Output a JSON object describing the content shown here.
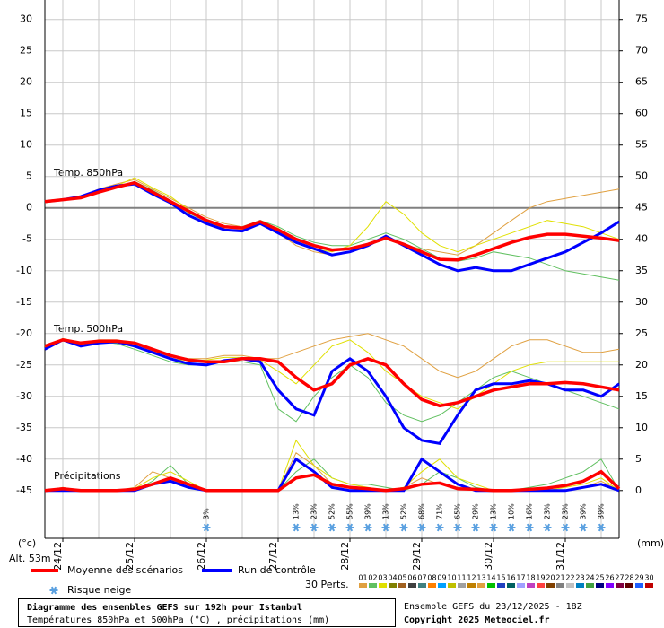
{
  "chart_data": {
    "type": "line",
    "xlim": [
      0,
      192
    ],
    "xticks": [
      {
        "value": 6,
        "label": "24/12"
      },
      {
        "value": 30,
        "label": "25/12"
      },
      {
        "value": 54,
        "label": "26/12"
      },
      {
        "value": 78,
        "label": "27/12"
      },
      {
        "value": 102,
        "label": "28/12"
      },
      {
        "value": 126,
        "label": "29/12"
      },
      {
        "value": 150,
        "label": "30/12"
      },
      {
        "value": 174,
        "label": "31/12"
      }
    ],
    "ylim": [
      -52.6,
      33.1
    ],
    "yticks": [
      -45,
      -40,
      -35,
      -30,
      -25,
      -20,
      -15,
      -10,
      -5,
      0,
      5,
      10,
      15,
      20,
      25,
      30
    ],
    "y2lim": [
      -7.6,
      78.1
    ],
    "y2ticks": [
      0,
      5,
      10,
      15,
      20,
      25,
      30,
      35,
      40,
      45,
      50,
      55,
      60,
      65,
      70,
      75
    ],
    "grid": true,
    "y_unit": "(°c)",
    "y2_unit": "(mm)",
    "altitude": "Alt. 53m",
    "x": [
      0,
      6,
      12,
      18,
      24,
      30,
      36,
      42,
      48,
      54,
      60,
      66,
      72,
      78,
      84,
      90,
      96,
      102,
      108,
      114,
      120,
      126,
      132,
      138,
      144,
      150,
      156,
      162,
      168,
      174,
      180,
      186,
      192
    ],
    "series": [
      {
        "name": "Temp. 850hPa",
        "axis": "y",
        "mean": [
          1.0,
          1.3,
          1.6,
          2.5,
          3.3,
          4.0,
          2.5,
          1.0,
          -0.5,
          -2,
          -3,
          -3.2,
          -2.2,
          -3.5,
          -5,
          -6,
          -6.7,
          -6.5,
          -5.8,
          -4.8,
          -5.8,
          -7,
          -8.2,
          -8.3,
          -7.5,
          -6.5,
          -5.5,
          -4.7,
          -4.2,
          -4.2,
          -4.5,
          -4.8,
          -5.2
        ],
        "control": [
          1,
          1.3,
          1.8,
          2.8,
          3.5,
          3.8,
          2.2,
          0.8,
          -1.2,
          -2.5,
          -3.5,
          -3.7,
          -2.5,
          -4,
          -5.5,
          -6.5,
          -7.5,
          -7,
          -6,
          -4.5,
          -6,
          -7.5,
          -9,
          -10,
          -9.5,
          -10,
          -10,
          -9,
          -8,
          -7,
          -5.5,
          -4,
          -2.2
        ],
        "members": [
          [
            1,
            1.2,
            1.8,
            3,
            3.8,
            4.5,
            3,
            1.5,
            0,
            -1.5,
            -2.5,
            -3,
            -2,
            -4,
            -6,
            -7,
            -7.5,
            -7,
            -6,
            -5,
            -6,
            -6.5,
            -7,
            -7.5,
            -6,
            -4,
            -2,
            0,
            1,
            1.5,
            2,
            2.5,
            3
          ],
          [
            0.8,
            1.4,
            1.5,
            2.6,
            3.2,
            4.2,
            2.8,
            1.2,
            -0.8,
            -2.2,
            -3.2,
            -3,
            -2,
            -3,
            -4.5,
            -5.5,
            -6,
            -6,
            -5,
            -4,
            -5,
            -6.5,
            -8,
            -8.5,
            -8,
            -7,
            -7.5,
            -8,
            -9,
            -10,
            -10.5,
            -11,
            -11.5
          ],
          [
            1.1,
            1.3,
            1.7,
            2.8,
            3.5,
            4.8,
            3.2,
            1.8,
            -0.3,
            -2,
            -3.5,
            -3.5,
            -2.5,
            -3.2,
            -5.5,
            -6.5,
            -7,
            -6,
            -3,
            1,
            -1,
            -4,
            -6,
            -7,
            -6,
            -5,
            -4,
            -3,
            -2,
            -2.5,
            -3,
            -4,
            -5
          ]
        ]
      },
      {
        "name": "Temp. 500hPa",
        "axis": "y",
        "mean": [
          -22,
          -21,
          -21.5,
          -21.2,
          -21.2,
          -21.5,
          -22.5,
          -23.5,
          -24.2,
          -24.5,
          -24.5,
          -24,
          -24,
          -24.5,
          -27,
          -29,
          -28,
          -25,
          -24,
          -25,
          -28,
          -30.5,
          -31.5,
          -31,
          -30,
          -29,
          -28.5,
          -28,
          -28,
          -27.8,
          -28,
          -28.5,
          -29
        ],
        "control": [
          -22.5,
          -21,
          -22,
          -21.5,
          -21.3,
          -22,
          -23,
          -24,
          -24.8,
          -25,
          -24.3,
          -24,
          -24.5,
          -29,
          -32,
          -33,
          -26,
          -24,
          -26,
          -30,
          -35,
          -37,
          -37.5,
          -33,
          -29,
          -28,
          -28,
          -27.5,
          -28,
          -29,
          -29,
          -30,
          -28
        ],
        "members": [
          [
            -22,
            -21.2,
            -21.8,
            -21,
            -21,
            -21.5,
            -22.5,
            -23.5,
            -24,
            -24,
            -23.5,
            -23.5,
            -24,
            -24,
            -23,
            -22,
            -21,
            -20.5,
            -20,
            -21,
            -22,
            -24,
            -26,
            -27,
            -26,
            -24,
            -22,
            -21,
            -21,
            -22,
            -23,
            -23,
            -22.5
          ],
          [
            -22.3,
            -21,
            -21.6,
            -21.3,
            -21.6,
            -22.5,
            -23.5,
            -24.5,
            -25,
            -25,
            -24.5,
            -24.5,
            -25,
            -32,
            -34,
            -30,
            -27,
            -25,
            -27,
            -31,
            -33,
            -34,
            -33,
            -31,
            -29,
            -27,
            -26,
            -27,
            -28,
            -29,
            -30,
            -31,
            -32
          ],
          [
            -22.1,
            -20.8,
            -21.4,
            -21.1,
            -21.2,
            -22,
            -23,
            -24,
            -24.3,
            -24.2,
            -23.8,
            -23.8,
            -24.2,
            -26,
            -28,
            -25,
            -22,
            -21,
            -23,
            -26,
            -28,
            -30,
            -31,
            -32,
            -30,
            -28,
            -26,
            -25,
            -24.5,
            -24.5,
            -24.5,
            -24.5,
            -24.5
          ]
        ]
      },
      {
        "name": "Précipitations",
        "axis": "y2",
        "mean": [
          0,
          0.3,
          0,
          0,
          0,
          0.2,
          1,
          2,
          1,
          0,
          0,
          0,
          0,
          0,
          2,
          2.5,
          1,
          0.5,
          0.3,
          0,
          0.3,
          1,
          1.2,
          0.3,
          0.2,
          0,
          0,
          0.2,
          0.4,
          0.8,
          1.5,
          3,
          0.3
        ],
        "control": [
          0,
          0,
          0,
          0,
          0,
          0,
          1,
          1.5,
          0.5,
          0,
          0,
          0,
          0,
          0,
          5,
          3,
          0.5,
          0,
          0,
          0,
          0,
          5,
          3,
          1,
          0,
          0,
          0,
          0,
          0,
          0,
          0.5,
          1,
          0
        ],
        "members": [
          [
            0,
            0.5,
            0,
            0,
            0,
            0.5,
            3,
            2,
            0.5,
            0,
            0,
            0,
            0,
            0,
            6,
            4,
            1,
            0.5,
            0,
            0,
            0.5,
            2,
            1,
            0.5,
            0,
            0,
            0,
            0,
            0,
            0,
            0.5,
            1.5,
            0
          ],
          [
            0,
            0,
            0,
            0,
            0,
            0,
            1.5,
            4,
            1,
            0,
            0,
            0,
            0,
            0,
            3,
            5,
            2,
            1,
            1,
            0.5,
            0,
            1,
            3,
            2,
            0.5,
            0,
            0,
            0.5,
            1,
            2,
            3,
            5,
            0
          ],
          [
            0,
            0.2,
            0,
            0,
            0,
            0.3,
            2,
            3,
            1.5,
            0,
            0,
            0,
            0,
            0,
            8,
            4,
            2,
            1,
            0.5,
            0,
            0.5,
            3,
            5,
            2,
            1,
            0,
            0,
            0,
            0,
            0.5,
            1,
            2,
            0
          ]
        ]
      }
    ],
    "snow": {
      "name": "Risque neige",
      "x": [
        54,
        84,
        90,
        96,
        102,
        108,
        114,
        120,
        126,
        132,
        138,
        144,
        150,
        156,
        162,
        168,
        174,
        180,
        186
      ],
      "values": [
        3,
        13,
        23,
        52,
        55,
        39,
        13,
        52,
        68,
        71,
        65,
        29,
        13,
        10,
        16,
        23,
        23,
        39,
        39
      ],
      "value_labels": [
        "3%",
        "13%",
        "23%",
        "52%",
        "55%",
        "39%",
        "13%",
        "52%",
        "68%",
        "71%",
        "65%",
        "29%",
        "13%",
        "10%",
        "16%",
        "23%",
        "23%",
        "39%",
        "39%"
      ]
    },
    "legend": {
      "mean": {
        "name": "Moyenne des scénarios",
        "color": "#ff0000"
      },
      "control": {
        "name": "Run de contrôle",
        "color": "#0000ff"
      },
      "perts_title": "30 Perts.",
      "perts": [
        {
          "name": "01",
          "color": "#e0a040"
        },
        {
          "name": "02",
          "color": "#60c060"
        },
        {
          "name": "03",
          "color": "#e0e000"
        },
        {
          "name": "04",
          "color": "#808000"
        },
        {
          "name": "05",
          "color": "#a06020"
        },
        {
          "name": "06",
          "color": "#404040"
        },
        {
          "name": "07",
          "color": "#408080"
        },
        {
          "name": "08",
          "color": "#ff8000"
        },
        {
          "name": "09",
          "color": "#00a0ff"
        },
        {
          "name": "10",
          "color": "#c0c000"
        },
        {
          "name": "11",
          "color": "#a0a0a0"
        },
        {
          "name": "12",
          "color": "#c08000"
        },
        {
          "name": "13",
          "color": "#e0a040"
        },
        {
          "name": "14",
          "color": "#00c000"
        },
        {
          "name": "15",
          "color": "#2040c0"
        },
        {
          "name": "16",
          "color": "#006060"
        },
        {
          "name": "17",
          "color": "#a0a0ff"
        },
        {
          "name": "18",
          "color": "#c040c0"
        },
        {
          "name": "19",
          "color": "#ff4040"
        },
        {
          "name": "20",
          "color": "#804000"
        },
        {
          "name": "21",
          "color": "#808080"
        },
        {
          "name": "22",
          "color": "#c0c0c0"
        },
        {
          "name": "23",
          "color": "#0080c0"
        },
        {
          "name": "24",
          "color": "#40a040"
        },
        {
          "name": "25",
          "color": "#000080"
        },
        {
          "name": "26",
          "color": "#8000ff"
        },
        {
          "name": "27",
          "color": "#800040"
        },
        {
          "name": "28",
          "color": "#600000"
        },
        {
          "name": "29",
          "color": "#2060ff"
        },
        {
          "name": "30",
          "color": "#c00000"
        }
      ]
    },
    "footer": {
      "title": "Diagramme des ensembles GEFS sur 192h pour Istanbul",
      "subtitle": "Températures 850hPa et 500hPa (°C) , précipitations (mm)",
      "run": "Ensemble GEFS du 23/12/2025 - 18Z",
      "copyright": "Copyright 2025 Meteociel.fr"
    }
  }
}
